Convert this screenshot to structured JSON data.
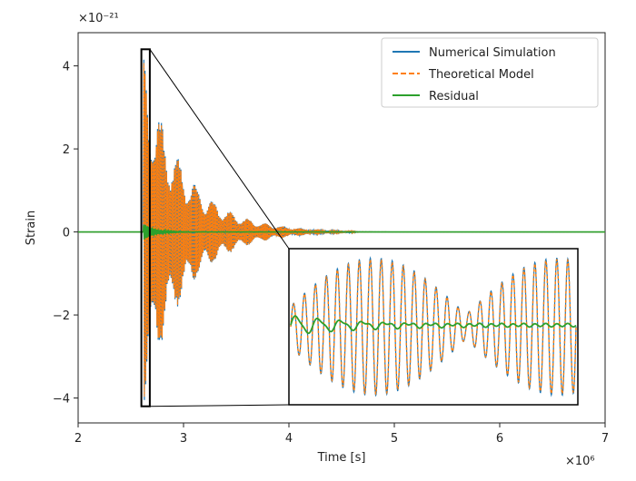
{
  "chart_data": {
    "type": "line",
    "title": "",
    "xlabel": "Time [s]",
    "ylabel": "Strain",
    "x_offset_text": "×10⁶",
    "y_offset_text": "×10⁻²¹",
    "xlim": [
      2.0,
      7.0
    ],
    "ylim": [
      -4.6,
      4.8
    ],
    "xticks": [
      2,
      3,
      4,
      5,
      6,
      7
    ],
    "xtick_labels": [
      "2",
      "3",
      "4",
      "5",
      "6",
      "7"
    ],
    "yticks": [
      -4,
      -2,
      0,
      2,
      4
    ],
    "ytick_labels": [
      "−4",
      "−2",
      "0",
      "2",
      "4"
    ],
    "legend_position": "top-right",
    "series": [
      {
        "name": "Numerical Simulation",
        "color": "#1f77b4",
        "style": "solid",
        "description_values": {
          "onset_x": 2.62,
          "peak_amplitude": 4.2,
          "decay_end_x": 4.6,
          "steady_value": 0.0
        }
      },
      {
        "name": "Theoretical Model",
        "color": "#ff7f0e",
        "style": "dashed",
        "description_values": {
          "onset_x": 2.62,
          "peak_amplitude": 4.2,
          "decay_end_x": 4.6,
          "steady_value": 0.0
        }
      },
      {
        "name": "Residual",
        "color": "#2ca02c",
        "style": "solid",
        "description_values": {
          "onset_x": 2.62,
          "peak_amplitude": 0.2,
          "steady_value": 0.0
        }
      }
    ],
    "inset": {
      "zoom_region_x": [
        2.6,
        2.68
      ],
      "zoom_region_y": [
        -4.2,
        4.4
      ]
    }
  }
}
